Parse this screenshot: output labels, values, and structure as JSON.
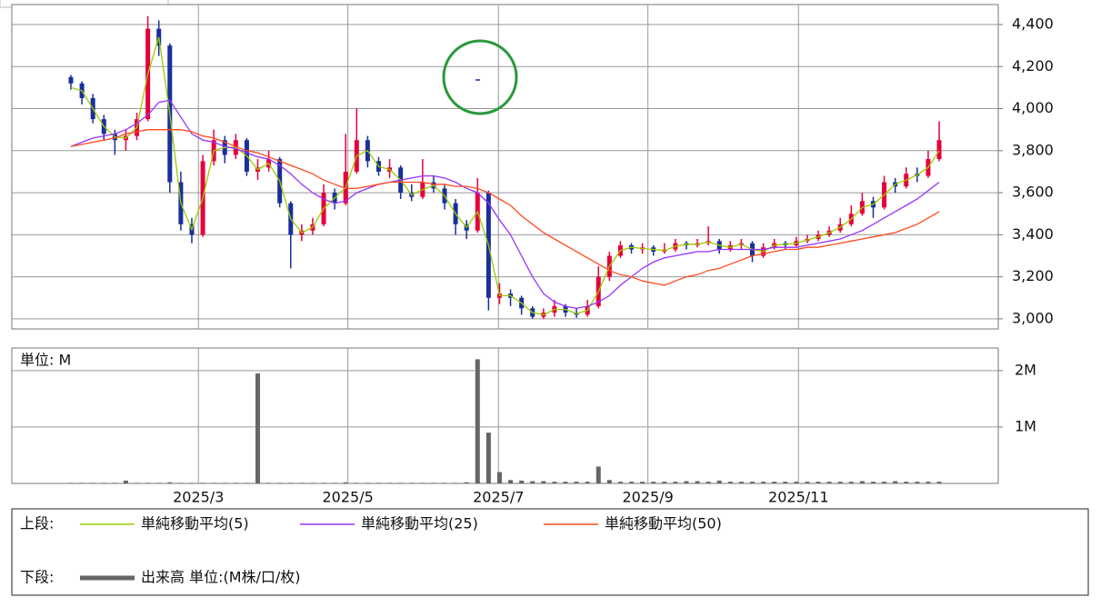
{
  "chart_data": [
    {
      "type": "candlestick",
      "categories": [
        null,
        null,
        null,
        null,
        null,
        null,
        null,
        null,
        null,
        null,
        null,
        null,
        null,
        null,
        null,
        null,
        null,
        null,
        null,
        null,
        null,
        null,
        null,
        null,
        null,
        null,
        null,
        null,
        null,
        null,
        null,
        null,
        null,
        null,
        null,
        null,
        null,
        null,
        null,
        null,
        null,
        null,
        null,
        null,
        null,
        null,
        null,
        null,
        null,
        null,
        null,
        null,
        null,
        null,
        null,
        null,
        null,
        null,
        null,
        null,
        null,
        null,
        null,
        null,
        null,
        null,
        null,
        null,
        null,
        null,
        null,
        null,
        null,
        null,
        null,
        null,
        null,
        null,
        null,
        null
      ],
      "ohlc": [
        [
          4150,
          4160,
          4090,
          4120
        ],
        [
          4120,
          4130,
          4020,
          4050
        ],
        [
          4050,
          4070,
          3930,
          3950
        ],
        [
          3950,
          3970,
          3850,
          3880
        ],
        [
          3880,
          3900,
          3780,
          3850
        ],
        [
          3850,
          3900,
          3800,
          3870
        ],
        [
          3870,
          3980,
          3850,
          3950
        ],
        [
          3950,
          4440,
          3940,
          4380
        ],
        [
          4380,
          4420,
          4250,
          4300
        ],
        [
          4300,
          4310,
          3600,
          3650
        ],
        [
          3650,
          3700,
          3420,
          3450
        ],
        [
          3450,
          3480,
          3360,
          3400
        ],
        [
          3400,
          3780,
          3390,
          3750
        ],
        [
          3750,
          3900,
          3730,
          3850
        ],
        [
          3850,
          3870,
          3740,
          3780
        ],
        [
          3780,
          3880,
          3760,
          3850
        ],
        [
          3850,
          3860,
          3680,
          3700
        ],
        [
          3700,
          3760,
          3660,
          3720
        ],
        [
          3720,
          3800,
          3700,
          3760
        ],
        [
          3760,
          3770,
          3530,
          3550
        ],
        [
          3550,
          3560,
          3240,
          3400
        ],
        [
          3400,
          3450,
          3370,
          3420
        ],
        [
          3420,
          3480,
          3400,
          3450
        ],
        [
          3450,
          3640,
          3440,
          3600
        ],
        [
          3600,
          3620,
          3520,
          3550
        ],
        [
          3550,
          3880,
          3540,
          3700
        ],
        [
          3700,
          4000,
          3690,
          3850
        ],
        [
          3850,
          3870,
          3720,
          3750
        ],
        [
          3750,
          3770,
          3680,
          3700
        ],
        [
          3700,
          3760,
          3670,
          3720
        ],
        [
          3720,
          3730,
          3570,
          3600
        ],
        [
          3600,
          3640,
          3560,
          3580
        ],
        [
          3580,
          3760,
          3570,
          3650
        ],
        [
          3650,
          3680,
          3600,
          3620
        ],
        [
          3620,
          3640,
          3520,
          3550
        ],
        [
          3550,
          3570,
          3400,
          3450
        ],
        [
          3450,
          3470,
          3380,
          3420
        ],
        [
          3420,
          3670,
          3410,
          3600
        ],
        [
          3600,
          3610,
          3040,
          3100
        ],
        [
          3100,
          3170,
          3070,
          3120
        ],
        [
          3120,
          3140,
          3060,
          3100
        ],
        [
          3100,
          3110,
          3020,
          3050
        ],
        [
          3050,
          3060,
          3000,
          3010
        ],
        [
          3010,
          3050,
          3000,
          3030
        ],
        [
          3030,
          3090,
          3010,
          3060
        ],
        [
          3060,
          3070,
          3010,
          3030
        ],
        [
          3030,
          3050,
          3005,
          3020
        ],
        [
          3020,
          3090,
          3010,
          3060
        ],
        [
          3060,
          3250,
          3050,
          3200
        ],
        [
          3200,
          3320,
          3180,
          3300
        ],
        [
          3300,
          3370,
          3290,
          3350
        ],
        [
          3350,
          3360,
          3310,
          3330
        ],
        [
          3330,
          3360,
          3310,
          3340
        ],
        [
          3340,
          3350,
          3300,
          3320
        ],
        [
          3320,
          3360,
          3310,
          3330
        ],
        [
          3330,
          3380,
          3320,
          3360
        ],
        [
          3360,
          3370,
          3330,
          3350
        ],
        [
          3350,
          3380,
          3340,
          3360
        ],
        [
          3360,
          3440,
          3350,
          3370
        ],
        [
          3370,
          3380,
          3310,
          3330
        ],
        [
          3330,
          3370,
          3320,
          3350
        ],
        [
          3350,
          3380,
          3330,
          3360
        ],
        [
          3360,
          3370,
          3270,
          3300
        ],
        [
          3300,
          3360,
          3290,
          3340
        ],
        [
          3340,
          3380,
          3330,
          3360
        ],
        [
          3360,
          3370,
          3330,
          3350
        ],
        [
          3350,
          3390,
          3340,
          3370
        ],
        [
          3370,
          3400,
          3360,
          3380
        ],
        [
          3380,
          3420,
          3370,
          3400
        ],
        [
          3400,
          3440,
          3390,
          3420
        ],
        [
          3420,
          3480,
          3410,
          3450
        ],
        [
          3450,
          3540,
          3440,
          3500
        ],
        [
          3500,
          3600,
          3490,
          3560
        ],
        [
          3560,
          3580,
          3480,
          3530
        ],
        [
          3530,
          3680,
          3520,
          3650
        ],
        [
          3650,
          3670,
          3600,
          3630
        ],
        [
          3630,
          3720,
          3620,
          3690
        ],
        [
          3690,
          3720,
          3650,
          3680
        ],
        [
          3680,
          3800,
          3670,
          3760
        ],
        [
          3760,
          3940,
          3750,
          3850
        ]
      ],
      "up_color": "#e6003a",
      "down_color": "#1a2e9c",
      "series": [
        {
          "name": "単純移動平均(5)",
          "color": "#9acd00",
          "values": [
            4100,
            4085,
            4000,
            3915,
            3865,
            3860,
            3910,
            4165,
            4340,
            3975,
            3550,
            3425,
            3575,
            3800,
            3815,
            3815,
            3775,
            3710,
            3740,
            3655,
            3475,
            3410,
            3435,
            3525,
            3575,
            3625,
            3775,
            3800,
            3725,
            3710,
            3660,
            3590,
            3615,
            3635,
            3585,
            3500,
            3435,
            3510,
            3350,
            3110,
            3110,
            3075,
            3030,
            3020,
            3045,
            3045,
            3025,
            3040,
            3130,
            3250,
            3325,
            3340,
            3335,
            3330,
            3325,
            3345,
            3355,
            3355,
            3365,
            3350,
            3340,
            3355,
            3330,
            3320,
            3350,
            3355,
            3360,
            3375,
            3390,
            3410,
            3435,
            3475,
            3530,
            3545,
            3590,
            3640,
            3660,
            3685,
            3720,
            3800
          ]
        },
        {
          "name": "単純移動平均(25)",
          "color": "#9933ff",
          "values": [
            3820,
            3840,
            3860,
            3870,
            3880,
            3900,
            3930,
            3970,
            4030,
            4040,
            3960,
            3880,
            3850,
            3840,
            3820,
            3810,
            3790,
            3770,
            3760,
            3730,
            3690,
            3640,
            3600,
            3570,
            3550,
            3560,
            3600,
            3620,
            3640,
            3650,
            3660,
            3670,
            3680,
            3680,
            3670,
            3650,
            3620,
            3600,
            3550,
            3470,
            3400,
            3300,
            3200,
            3120,
            3080,
            3060,
            3050,
            3060,
            3080,
            3110,
            3160,
            3200,
            3240,
            3270,
            3290,
            3300,
            3310,
            3320,
            3320,
            3330,
            3330,
            3330,
            3330,
            3330,
            3340,
            3340,
            3340,
            3350,
            3360,
            3370,
            3380,
            3400,
            3420,
            3450,
            3480,
            3510,
            3540,
            3570,
            3610,
            3650
          ]
        },
        {
          "name": "単純移動平均(50)",
          "color": "#ff4a1f",
          "values": [
            3820,
            3830,
            3840,
            3850,
            3860,
            3880,
            3890,
            3900,
            3900,
            3900,
            3900,
            3890,
            3870,
            3860,
            3840,
            3820,
            3800,
            3790,
            3770,
            3750,
            3730,
            3710,
            3690,
            3660,
            3640,
            3620,
            3620,
            3630,
            3640,
            3650,
            3650,
            3650,
            3650,
            3640,
            3640,
            3630,
            3630,
            3620,
            3600,
            3570,
            3540,
            3490,
            3450,
            3410,
            3380,
            3350,
            3320,
            3290,
            3260,
            3230,
            3210,
            3200,
            3180,
            3170,
            3160,
            3180,
            3200,
            3210,
            3230,
            3240,
            3260,
            3280,
            3300,
            3310,
            3320,
            3330,
            3330,
            3340,
            3340,
            3350,
            3360,
            3370,
            3380,
            3390,
            3400,
            3410,
            3430,
            3450,
            3480,
            3510
          ]
        }
      ],
      "legend_title": "上段:",
      "ylim": [
        2952,
        4495
      ],
      "yticks": [
        {
          "value": 3000,
          "label": "3,000"
        },
        {
          "value": 3200,
          "label": "3,200"
        },
        {
          "value": 3400,
          "label": "3,400"
        },
        {
          "value": 3600,
          "label": "3,600"
        },
        {
          "value": 3800,
          "label": "3,800"
        },
        {
          "value": 4000,
          "label": "4,000"
        },
        {
          "value": 4200,
          "label": "4,200"
        },
        {
          "value": 4400,
          "label": "4,400"
        }
      ],
      "grid": true
    },
    {
      "type": "bar",
      "unit_label": "単位: M",
      "legend_title": "下段:",
      "series": [
        {
          "name": "出来高 単位:(M株/口/枚)",
          "color": "#666666",
          "values": [
            0.01,
            0.01,
            0.01,
            0.01,
            0.01,
            0.05,
            0.01,
            0.01,
            0.01,
            0.02,
            0.01,
            0.01,
            0.01,
            0.01,
            0.01,
            0.01,
            0.01,
            1.95,
            0.01,
            0.01,
            0.01,
            0.01,
            0.01,
            0.01,
            0.01,
            0.02,
            0.01,
            0.01,
            0.01,
            0.01,
            0.01,
            0.01,
            0.01,
            0.01,
            0.01,
            0.01,
            0.02,
            2.2,
            0.9,
            0.2,
            0.06,
            0.05,
            0.04,
            0.04,
            0.03,
            0.03,
            0.03,
            0.03,
            0.3,
            0.06,
            0.03,
            0.03,
            0.03,
            0.03,
            0.03,
            0.03,
            0.04,
            0.04,
            0.03,
            0.05,
            0.03,
            0.03,
            0.03,
            0.03,
            0.03,
            0.03,
            0.03,
            0.03,
            0.03,
            0.03,
            0.03,
            0.03,
            0.04,
            0.03,
            0.03,
            0.04,
            0.03,
            0.03,
            0.03,
            0.03
          ]
        }
      ],
      "ylim": [
        0,
        2.4
      ],
      "yticks": [
        {
          "value": 1,
          "label": "1M"
        },
        {
          "value": 2,
          "label": "2M"
        }
      ],
      "xticks": [
        {
          "value": 11.6,
          "label": "2025/3"
        },
        {
          "value": 25.2,
          "label": "2025/5"
        },
        {
          "value": 38.9,
          "label": "2025/7"
        },
        {
          "value": 52.5,
          "label": "2025/9"
        },
        {
          "value": 66.2,
          "label": "2025/11"
        }
      ]
    }
  ]
}
